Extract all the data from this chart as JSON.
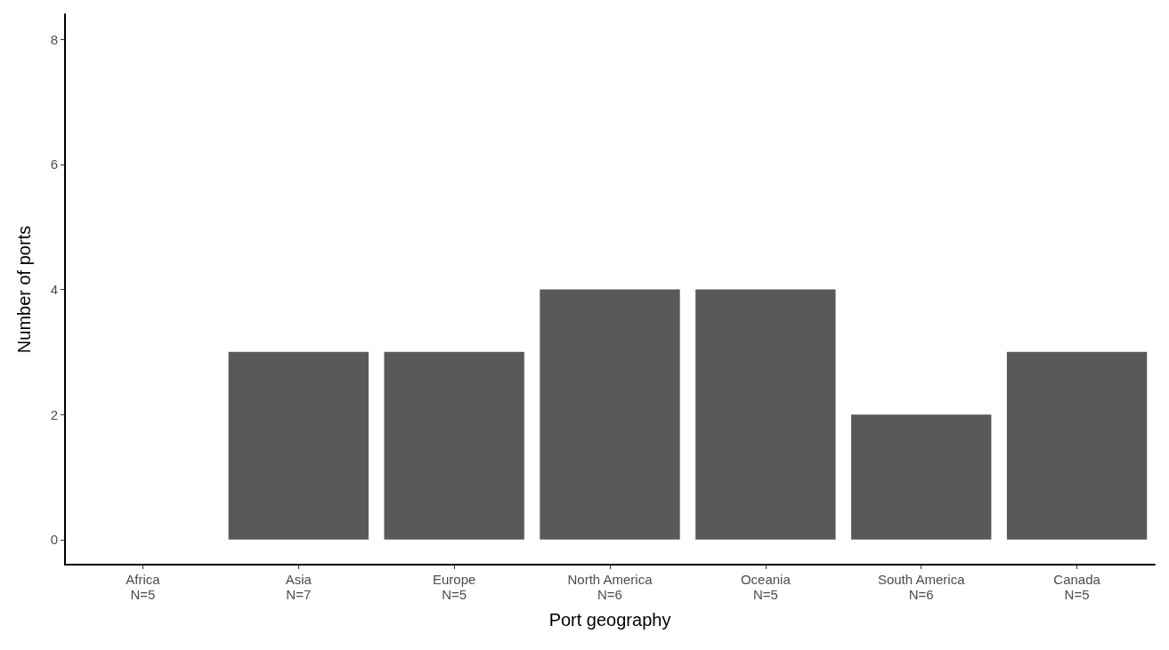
{
  "chart_data": {
    "type": "bar",
    "xlabel": "Port geography",
    "ylabel": "Number of ports",
    "categories": [
      "Africa\nN=5",
      "Asia\nN=7",
      "Europe\nN=5",
      "North America\nN=6",
      "Oceania\nN=5",
      "South America\nN=6",
      "Canada\nN=5"
    ],
    "values": [
      0,
      3,
      3,
      4,
      4,
      2,
      3
    ],
    "color": "#595959",
    "ylim": [
      -0.4,
      8.4
    ],
    "yticks": [
      0,
      2,
      4,
      6,
      8
    ],
    "grid": false
  }
}
